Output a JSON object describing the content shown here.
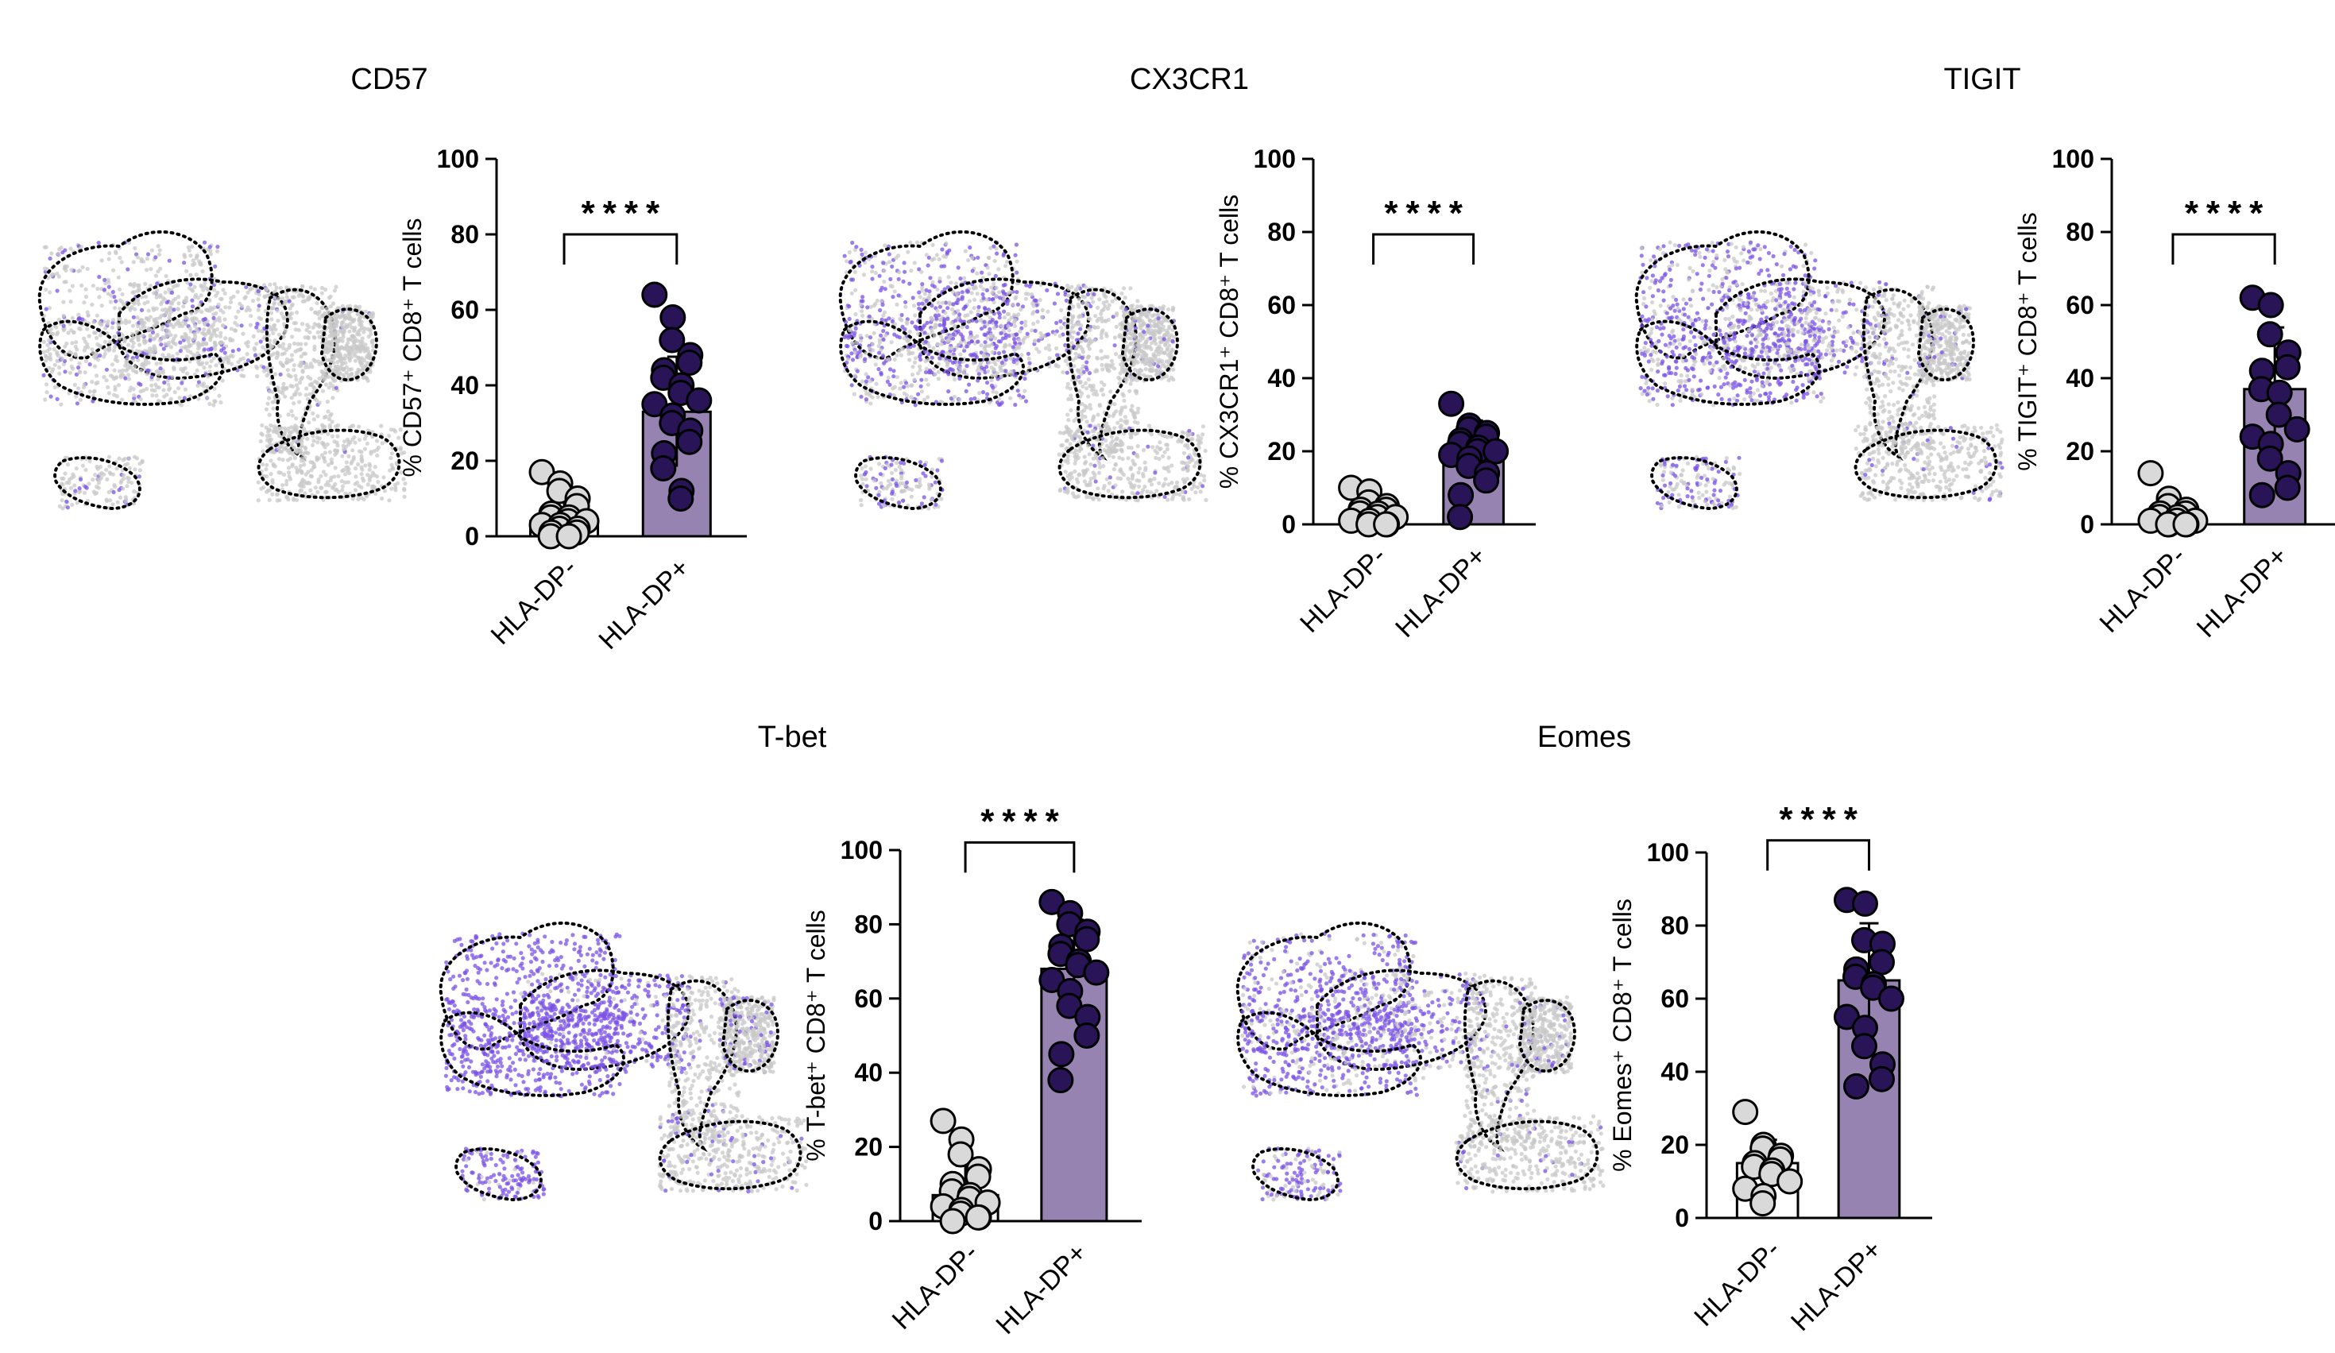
{
  "colors": {
    "negative_fill": "#d9d9d9",
    "positive_fill": "#2a1458",
    "positive_bar": "#9683b2",
    "negative_bar": "#ffffff",
    "umap_background": "#c8c8c8",
    "umap_highlight": "#7b52e6"
  },
  "chart_data": [
    {
      "type": "bar",
      "marker": "CD57",
      "title": "CD57",
      "ylabel": "% CD57⁺ CD8⁺ T cells",
      "categories": [
        "HLA-DP-",
        "HLA-DP+"
      ],
      "ylim": [
        0,
        100
      ],
      "yticks": [
        "0",
        "20",
        "40",
        "60",
        "80",
        "100"
      ],
      "significance": "****",
      "series": [
        {
          "values": [
            4,
            33
          ],
          "points": [
            [
              17,
              14,
              12,
              10,
              8,
              6,
              5,
              5,
              4,
              4,
              3,
              3,
              2,
              2,
              1,
              1,
              0,
              0
            ],
            [
              64,
              58,
              52,
              48,
              46,
              44,
              42,
              40,
              38,
              36,
              35,
              32,
              30,
              28,
              25,
              22,
              18,
              12,
              10
            ]
          ]
        }
      ]
    },
    {
      "type": "bar",
      "marker": "CX3CR1",
      "title": "CX3CR1",
      "ylabel": "% CX3CR1⁺ CD8⁺ T cells",
      "categories": [
        "HLA-DP-",
        "HLA-DP+"
      ],
      "ylim": [
        0,
        100
      ],
      "yticks": [
        "0",
        "20",
        "40",
        "60",
        "80",
        "100"
      ],
      "significance": "****",
      "series": [
        {
          "values": [
            3,
            21
          ],
          "points": [
            [
              10,
              9,
              6,
              5,
              4,
              4,
              3,
              3,
              2,
              2,
              1,
              1,
              0,
              0,
              0
            ],
            [
              33,
              27,
              26,
              25,
              24,
              23,
              22,
              21,
              20,
              20,
              19,
              18,
              16,
              14,
              12,
              8,
              2
            ]
          ]
        }
      ]
    },
    {
      "type": "bar",
      "marker": "TIGIT",
      "title": "TIGIT",
      "ylabel": "% TIGIT⁺ CD8⁺ T cells",
      "categories": [
        "HLA-DP-",
        "HLA-DP+"
      ],
      "ylim": [
        0,
        100
      ],
      "yticks": [
        "0",
        "20",
        "40",
        "60",
        "80",
        "100"
      ],
      "significance": "****",
      "series": [
        {
          "values": [
            3,
            37
          ],
          "points": [
            [
              14,
              7,
              5,
              4,
              3,
              3,
              2,
              2,
              1,
              1,
              1,
              0,
              0,
              0,
              0
            ],
            [
              62,
              60,
              52,
              47,
              43,
              42,
              37,
              36,
              30,
              26,
              24,
              22,
              18,
              14,
              10,
              8
            ]
          ]
        }
      ]
    },
    {
      "type": "bar",
      "marker": "T-bet",
      "title": "T-bet",
      "ylabel": "% T-bet⁺ CD8⁺ T cells",
      "categories": [
        "HLA-DP-",
        "HLA-DP+"
      ],
      "ylim": [
        0,
        100
      ],
      "yticks": [
        "0",
        "20",
        "40",
        "60",
        "80",
        "100"
      ],
      "significance": "****",
      "series": [
        {
          "values": [
            7,
            68
          ],
          "points": [
            [
              27,
              22,
              18,
              14,
              12,
              10,
              8,
              7,
              6,
              5,
              4,
              3,
              2,
              1,
              1,
              0
            ],
            [
              86,
              83,
              80,
              78,
              76,
              74,
              72,
              70,
              69,
              67,
              65,
              62,
              58,
              55,
              50,
              45,
              38
            ]
          ]
        }
      ]
    },
    {
      "type": "bar",
      "marker": "Eomes",
      "title": "Eomes",
      "ylabel": "% Eomes⁺ CD8⁺ T cells",
      "categories": [
        "HLA-DP-",
        "HLA-DP+"
      ],
      "ylim": [
        0,
        100
      ],
      "yticks": [
        "0",
        "20",
        "40",
        "60",
        "80",
        "100"
      ],
      "significance": "****",
      "series": [
        {
          "values": [
            15,
            65
          ],
          "points": [
            [
              29,
              20,
              19,
              17,
              16,
              15,
              14,
              13,
              12,
              10,
              8,
              6,
              4
            ],
            [
              87,
              86,
              76,
              75,
              70,
              68,
              66,
              64,
              63,
              60,
              55,
              52,
              47,
              42,
              38,
              36
            ]
          ]
        }
      ]
    }
  ]
}
